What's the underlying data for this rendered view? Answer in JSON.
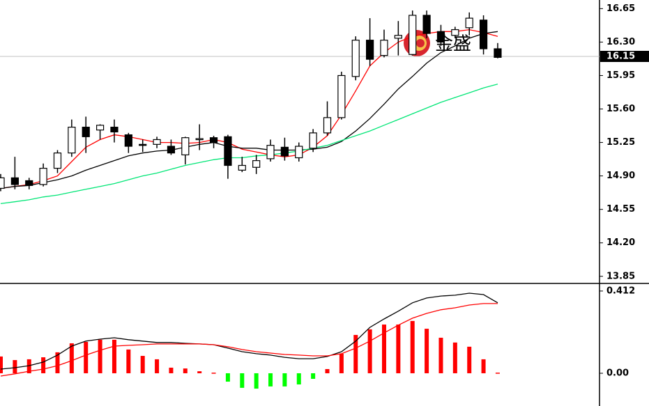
{
  "chart_data": [
    {
      "type": "candlestick",
      "open": [
        14.77,
        14.88,
        14.85,
        14.81,
        14.98,
        15.14,
        15.41,
        15.38,
        15.41,
        15.33,
        15.23,
        15.23,
        15.21,
        15.12,
        15.28,
        15.3,
        15.31,
        14.96,
        14.99,
        15.08,
        15.2,
        15.09,
        15.19,
        15.35,
        15.51,
        15.94,
        16.32,
        16.16,
        16.34,
        16.17,
        16.58,
        16.41,
        16.37,
        16.45,
        16.53,
        16.23
      ],
      "high": [
        14.92,
        15.1,
        14.88,
        15.03,
        15.17,
        15.49,
        15.52,
        15.44,
        15.49,
        15.35,
        15.28,
        15.31,
        15.28,
        15.31,
        15.44,
        15.32,
        15.33,
        15.1,
        15.12,
        15.28,
        15.3,
        15.25,
        15.39,
        15.68,
        15.99,
        16.36,
        16.55,
        16.43,
        16.52,
        16.63,
        16.63,
        16.48,
        16.46,
        16.61,
        16.58,
        16.29
      ],
      "low": [
        14.74,
        14.76,
        14.76,
        14.79,
        14.93,
        15.1,
        15.14,
        15.28,
        15.25,
        15.14,
        15.15,
        15.19,
        15.12,
        15.02,
        15.17,
        15.19,
        14.87,
        14.94,
        14.92,
        15.05,
        15.06,
        15.05,
        15.15,
        15.32,
        15.49,
        15.9,
        16.05,
        16.14,
        16.16,
        16.16,
        16.34,
        16.26,
        16.34,
        16.37,
        16.17,
        16.13
      ],
      "close": [
        14.88,
        14.81,
        14.8,
        14.98,
        15.14,
        15.41,
        15.31,
        15.43,
        15.36,
        15.21,
        15.22,
        15.28,
        15.14,
        15.3,
        15.29,
        15.25,
        15.01,
        15.01,
        15.06,
        15.22,
        15.11,
        15.21,
        15.35,
        15.51,
        15.95,
        16.32,
        16.12,
        16.32,
        16.37,
        16.58,
        16.39,
        16.3,
        16.43,
        16.55,
        16.23,
        16.14
      ],
      "up_color": "#ffffff",
      "down_color": "#000000",
      "series": [
        {
          "color": "#ff0000",
          "values": [
            14.77,
            14.79,
            14.81,
            14.85,
            14.9,
            15.05,
            15.2,
            15.28,
            15.33,
            15.31,
            15.28,
            15.25,
            15.25,
            15.24,
            15.25,
            15.28,
            15.25,
            15.18,
            15.15,
            15.12,
            15.1,
            15.12,
            15.2,
            15.32,
            15.54,
            15.79,
            16.05,
            16.19,
            16.3,
            16.36,
            16.39,
            16.41,
            16.41,
            16.43,
            16.4,
            16.36
          ]
        },
        {
          "color": "#000000",
          "values": [
            14.77,
            14.79,
            14.8,
            14.83,
            14.86,
            14.9,
            14.96,
            15.01,
            15.06,
            15.11,
            15.14,
            15.16,
            15.17,
            15.2,
            15.23,
            15.25,
            15.21,
            15.19,
            15.19,
            15.17,
            15.17,
            15.17,
            15.18,
            15.2,
            15.26,
            15.37,
            15.5,
            15.65,
            15.81,
            15.94,
            16.08,
            16.19,
            16.26,
            16.34,
            16.39,
            16.41
          ]
        },
        {
          "color": "#00e676",
          "values": [
            14.61,
            14.63,
            14.65,
            14.68,
            14.7,
            14.73,
            14.76,
            14.79,
            14.82,
            14.86,
            14.9,
            14.93,
            14.97,
            15.01,
            15.04,
            15.07,
            15.09,
            15.09,
            15.11,
            15.12,
            15.14,
            15.16,
            15.19,
            15.22,
            15.27,
            15.32,
            15.37,
            15.43,
            15.49,
            15.55,
            15.61,
            15.67,
            15.72,
            15.77,
            15.82,
            15.86
          ]
        }
      ],
      "last_price": 16.15,
      "watermark": "金盛",
      "ylim": [
        13.79,
        16.74
      ],
      "yticks": [
        16.65,
        {
          "value": 16.3,
          "label": "16.30"
        },
        15.95,
        {
          "value": 15.6,
          "label": "15.60"
        },
        15.25,
        {
          "value": 14.9,
          "label": "14.90"
        },
        14.55,
        {
          "value": 14.2,
          "label": "14.20"
        },
        13.85
      ]
    },
    {
      "type": "macd",
      "histogram": [
        0.084,
        0.066,
        0.07,
        0.08,
        0.105,
        0.15,
        0.157,
        0.168,
        0.168,
        0.119,
        0.087,
        0.07,
        0.028,
        0.024,
        0.01,
        0.003,
        -0.042,
        -0.073,
        -0.077,
        -0.066,
        -0.066,
        -0.056,
        -0.028,
        0.021,
        0.098,
        0.192,
        0.22,
        0.244,
        0.244,
        0.262,
        0.223,
        0.178,
        0.154,
        0.133,
        0.07,
        0.003
      ],
      "up_color": "#ff0000",
      "down_color": "#00ff00",
      "series": [
        {
          "color": "#000000",
          "values": [
            0.021,
            0.028,
            0.038,
            0.056,
            0.091,
            0.136,
            0.161,
            0.171,
            0.178,
            0.168,
            0.161,
            0.154,
            0.154,
            0.15,
            0.147,
            0.143,
            0.126,
            0.108,
            0.098,
            0.091,
            0.08,
            0.073,
            0.073,
            0.084,
            0.108,
            0.161,
            0.23,
            0.272,
            0.311,
            0.353,
            0.377,
            0.387,
            0.391,
            0.401,
            0.394,
            0.353
          ]
        },
        {
          "color": "#ff0000",
          "values": [
            -0.014,
            -0.003,
            0.01,
            0.021,
            0.038,
            0.063,
            0.091,
            0.115,
            0.136,
            0.14,
            0.143,
            0.147,
            0.147,
            0.147,
            0.147,
            0.143,
            0.133,
            0.119,
            0.108,
            0.101,
            0.094,
            0.091,
            0.087,
            0.087,
            0.098,
            0.126,
            0.161,
            0.202,
            0.241,
            0.276,
            0.3,
            0.318,
            0.328,
            0.342,
            0.349,
            0.349
          ]
        }
      ],
      "ylim": [
        -0.164,
        0.443
      ],
      "yticks": [
        0.412,
        {
          "value": 0,
          "label": "0.00"
        }
      ]
    }
  ]
}
